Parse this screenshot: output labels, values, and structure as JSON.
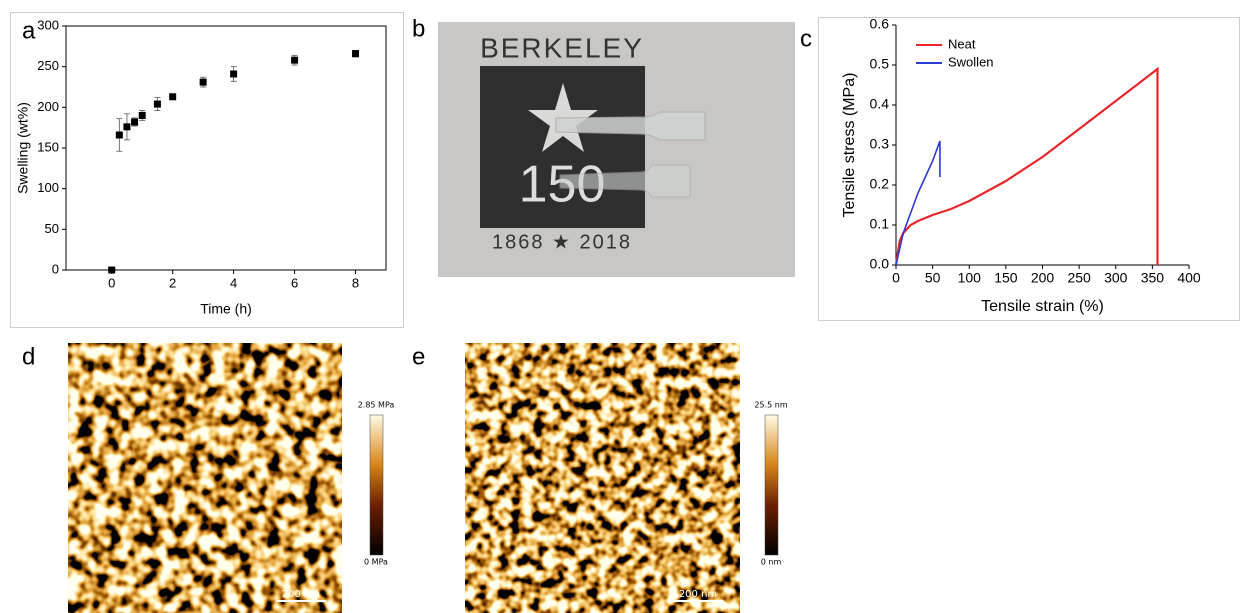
{
  "panel_labels": [
    "a",
    "b",
    "c",
    "d",
    "e"
  ],
  "photo": {
    "top": "BERKELEY",
    "number": "150",
    "bottom": "1868 ★ 2018"
  },
  "afm": [
    {
      "max": "2.85 MPa",
      "min": "0 MPa",
      "scale": "200 nm"
    },
    {
      "max": "25.5 nm",
      "min": "0 nm",
      "scale": "200 nm"
    }
  ],
  "chart_data": [
    {
      "type": "scatter",
      "x_label": "Time (h)",
      "y_label": "Swelling (wt%)",
      "color": "#000000",
      "x": [
        0,
        0.25,
        0.5,
        0.75,
        1,
        1.5,
        2,
        3,
        4,
        6,
        8
      ],
      "values": [
        0,
        166,
        176,
        182,
        190,
        204,
        213,
        231,
        241,
        258,
        266
      ],
      "errors": [
        0,
        20,
        16,
        5,
        6,
        8,
        3,
        6,
        9,
        6,
        4
      ],
      "xlim": [
        -1.5,
        9
      ],
      "xticks": [
        0,
        2,
        4,
        6,
        8
      ],
      "ylim": [
        0,
        300
      ],
      "yticks": [
        0,
        50,
        100,
        150,
        200,
        250,
        300
      ],
      "frame": true
    },
    {
      "type": "line",
      "x_label": "Tensile strain (%)",
      "y_label": "Tensile stress (MPa)",
      "legend": "upper left",
      "series": [
        {
          "name": "Neat",
          "color": "#e8262a",
          "x": [
            0,
            5,
            10,
            20,
            30,
            50,
            75,
            100,
            150,
            200,
            250,
            300,
            357,
            357
          ],
          "values": [
            0,
            0.06,
            0.08,
            0.1,
            0.11,
            0.125,
            0.14,
            0.16,
            0.21,
            0.27,
            0.34,
            0.41,
            0.49,
            0
          ]
        },
        {
          "name": "Swollen",
          "color": "#2a3bd0",
          "x": [
            0,
            10,
            20,
            30,
            40,
            50,
            60,
            60
          ],
          "values": [
            0,
            0.08,
            0.13,
            0.18,
            0.22,
            0.26,
            0.31,
            0.22
          ]
        }
      ],
      "xlim": [
        0,
        400
      ],
      "xticks": [
        0,
        50,
        100,
        150,
        200,
        250,
        300,
        350,
        400
      ],
      "ylim": [
        0,
        0.6
      ],
      "yticks": [
        {
          "value": 0,
          "label": "0.0"
        },
        0.1,
        0.2,
        0.3,
        0.4,
        0.5,
        0.6
      ],
      "frame": false
    }
  ]
}
